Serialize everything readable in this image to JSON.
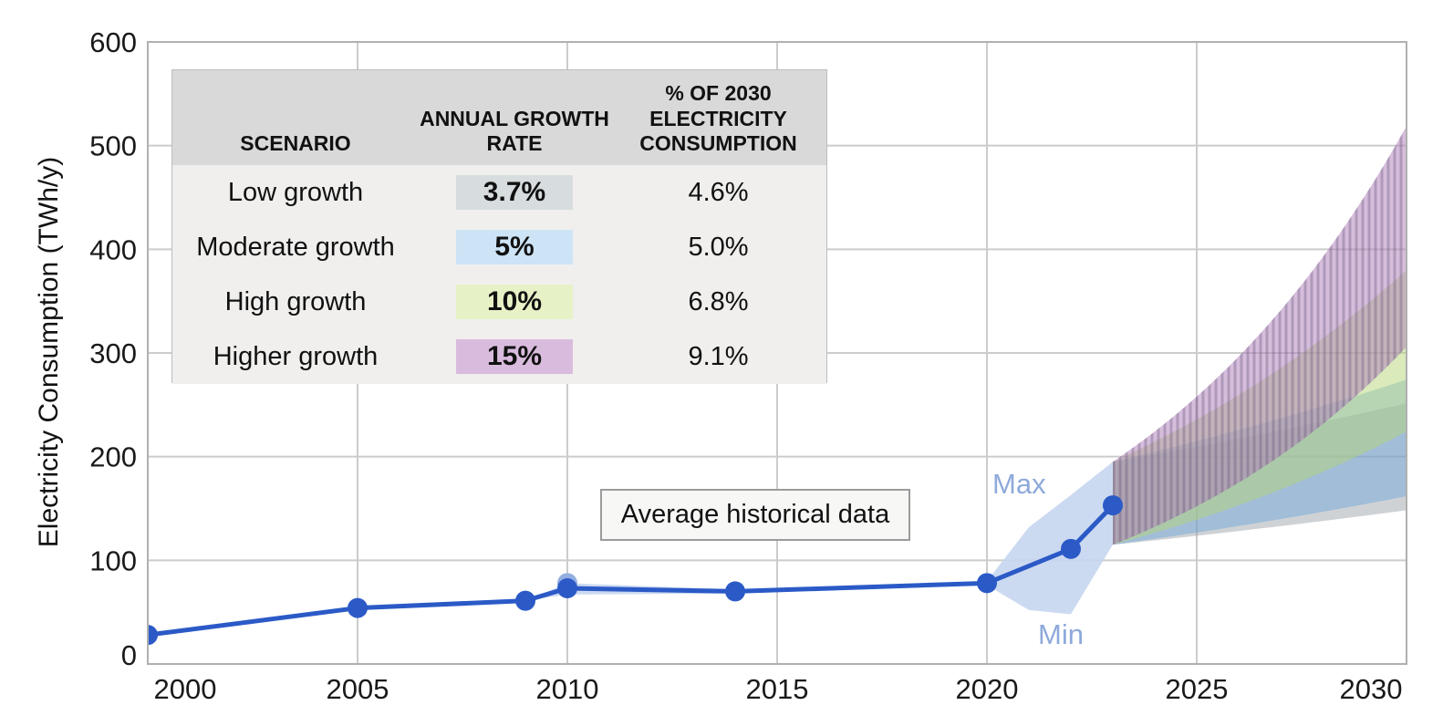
{
  "chart_data": {
    "type": "line",
    "title": "",
    "ylabel": "Electricity Consumption (TWh/y)",
    "xlim": [
      2000,
      2030
    ],
    "ylim": [
      0,
      600
    ],
    "x_ticks": [
      2000,
      2005,
      2010,
      2015,
      2020,
      2025,
      2030
    ],
    "y_ticks": [
      0,
      100,
      200,
      300,
      400,
      500,
      600
    ],
    "grid": true,
    "legend_position": "upper-left-table",
    "historical": {
      "label": "Average historical data",
      "years": [
        2000,
        2005,
        2009,
        2010,
        2014,
        2020,
        2022,
        2023
      ],
      "values": [
        28,
        54,
        61,
        73,
        70,
        78,
        111,
        153
      ]
    },
    "uncertainty_band": {
      "max_label": "Max",
      "min_label": "Min",
      "years": [
        2009,
        2010,
        2014,
        2020,
        2021,
        2022,
        2023
      ],
      "max": [
        61,
        78,
        72,
        80,
        132,
        163,
        195
      ],
      "min": [
        61,
        67,
        68,
        76,
        52,
        48,
        115
      ],
      "marker_years": [
        2010
      ]
    },
    "projections": {
      "start_year": 2023,
      "end_year": 2030,
      "start_min": 115,
      "start_max": 195,
      "scenarios": [
        {
          "name": "Low growth",
          "annual_growth_rate": "3.7%",
          "rate": 0.037,
          "share_of_2030": "4.6%",
          "value_2030_min": 149,
          "value_2030_max": 252,
          "swatch_color": "#d7dcde",
          "fan_color": "rgba(148,155,161,0.45)",
          "hatched": false
        },
        {
          "name": "Moderate growth",
          "annual_growth_rate": "5%",
          "rate": 0.05,
          "share_of_2030": "5.0%",
          "value_2030_min": 162,
          "value_2030_max": 274,
          "swatch_color": "#cde4f6",
          "fan_color": "rgba(110,168,219,0.48)",
          "hatched": false
        },
        {
          "name": "High growth",
          "annual_growth_rate": "10%",
          "rate": 0.1,
          "share_of_2030": "6.8%",
          "value_2030_min": 224,
          "value_2030_max": 380,
          "swatch_color": "#e6f1c6",
          "fan_color": "rgba(182,214,120,0.50)",
          "hatched": false
        },
        {
          "name": "Higher growth",
          "annual_growth_rate": "15%",
          "rate": 0.15,
          "share_of_2030": "9.1%",
          "value_2030_min": 306,
          "value_2030_max": 519,
          "swatch_color": "#d9bcdd",
          "fan_color": "rgba(176,128,188,0.52)",
          "hatched": true
        }
      ]
    }
  },
  "table": {
    "headers": [
      "SCENARIO",
      "ANNUAL GROWTH RATE",
      "% OF 2030 ELECTRICITY CONSUMPTION"
    ]
  },
  "colors": {
    "line_blue": "#2b5ac7",
    "point_blue": "#2b5ac7",
    "secondary_point_blue": "#93afe0",
    "band_fill": "#c7d6ef",
    "band_label": "#8ea9db",
    "grid": "#cccccc",
    "plot_border": "#b0b0b0",
    "tick_text": "#1a1a1a",
    "hatch_stripe": "rgba(95,78,115,0.33)",
    "table_header_bg": "#d9d9d9",
    "table_body_bg": "#f0efee",
    "avg_box_bg": "#f7f7f6",
    "avg_box_border": "#9b9b9b"
  }
}
